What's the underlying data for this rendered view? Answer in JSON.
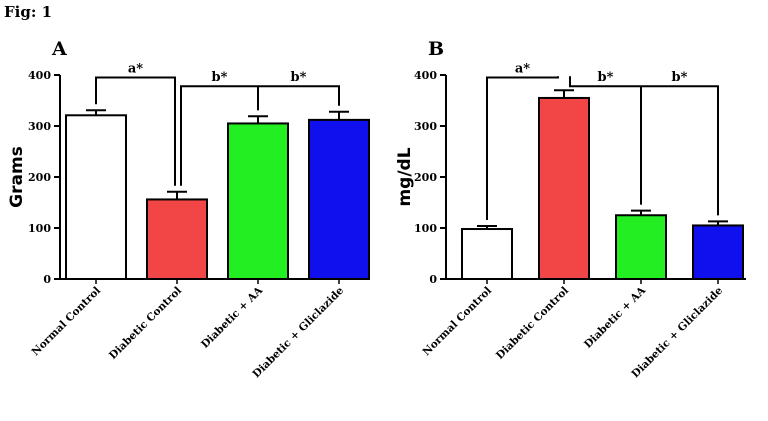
{
  "figure_label": "Fig: 1",
  "chart_data": [
    {
      "type": "bar",
      "panel": "A",
      "ylabel": "Grams",
      "ylim": [
        0,
        400
      ],
      "yticks": [
        0,
        100,
        200,
        300,
        400
      ],
      "categories": [
        "Normal Control",
        "Diabetic Control",
        "Diabetic + AA",
        "Diabetic + Gliclazide"
      ],
      "values": [
        321,
        156,
        305,
        312
      ],
      "errors": [
        10,
        15,
        14,
        16
      ],
      "colors": [
        "#ffffff",
        "#f24545",
        "#22ee22",
        "#1010ee"
      ],
      "significance": [
        {
          "label": "a*",
          "from": 0,
          "to": 1
        },
        {
          "label": "b*",
          "from": 1,
          "to": 2
        },
        {
          "label": "b*",
          "from": 1,
          "to": 3
        }
      ]
    },
    {
      "type": "bar",
      "panel": "B",
      "ylabel": "mg/dL",
      "ylim": [
        0,
        400
      ],
      "yticks": [
        0,
        100,
        200,
        300,
        400
      ],
      "categories": [
        "Normal Control",
        "Diabetic Control",
        "Diabetic + AA",
        "Diabetic + Gliclazide"
      ],
      "values": [
        98,
        355,
        125,
        105
      ],
      "errors": [
        6,
        15,
        9,
        8
      ],
      "colors": [
        "#ffffff",
        "#f24545",
        "#22ee22",
        "#1010ee"
      ],
      "significance": [
        {
          "label": "a*",
          "from": 0,
          "to": 1
        },
        {
          "label": "b*",
          "from": 1,
          "to": 2
        },
        {
          "label": "b*",
          "from": 1,
          "to": 3
        }
      ]
    }
  ]
}
